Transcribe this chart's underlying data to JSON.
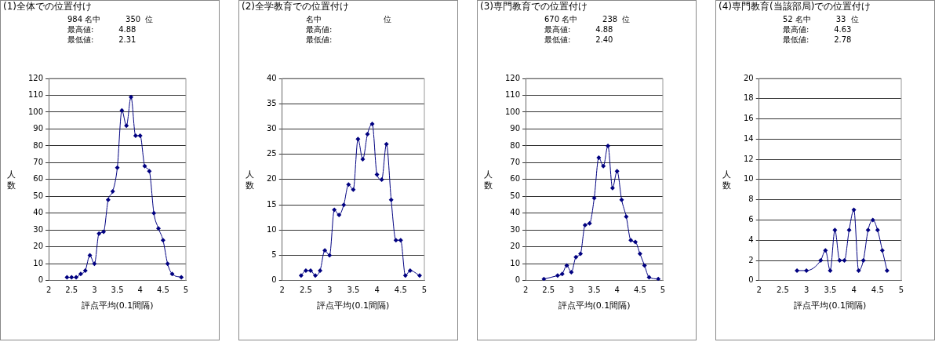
{
  "chart_data": [
    {
      "type": "line",
      "title": "(1)全体での位置付け",
      "annotations": [
        "984 名中          350  位",
        "最高値:          4.88",
        "最低値:          2.31"
      ],
      "xlabel": "評点平均(0.1間隔)",
      "ylabel": "人数",
      "color": "#000080",
      "marker": "diamond",
      "grid": "y",
      "x": [
        2.4,
        2.5,
        2.6,
        2.7,
        2.8,
        2.9,
        3.0,
        3.1,
        3.2,
        3.3,
        3.4,
        3.5,
        3.6,
        3.7,
        3.8,
        3.9,
        4.0,
        4.1,
        4.2,
        4.3,
        4.4,
        4.5,
        4.6,
        4.7,
        4.9
      ],
      "values": [
        2,
        2,
        2,
        4,
        6,
        15,
        10,
        28,
        29,
        48,
        53,
        67,
        101,
        92,
        109,
        86,
        86,
        68,
        65,
        40,
        31,
        24,
        10,
        4,
        2
      ],
      "xlim": [
        2,
        5
      ],
      "xticks": [
        2,
        2.5,
        3,
        3.5,
        4,
        4.5,
        5
      ],
      "ylim": [
        0,
        120
      ],
      "yticks": [
        0,
        10,
        20,
        30,
        40,
        50,
        60,
        70,
        80,
        90,
        100,
        110,
        120
      ]
    },
    {
      "type": "line",
      "title": "(2)全学教育での位置付け",
      "annotations": [
        "名中                         位",
        "最高値:",
        "最低値:"
      ],
      "xlabel": "評点平均(0.1間隔)",
      "ylabel": "人数",
      "color": "#000080",
      "marker": "diamond",
      "grid": "y",
      "x": [
        2.4,
        2.5,
        2.6,
        2.7,
        2.8,
        2.9,
        3.0,
        3.1,
        3.2,
        3.3,
        3.4,
        3.5,
        3.6,
        3.7,
        3.8,
        3.9,
        4.0,
        4.1,
        4.2,
        4.3,
        4.4,
        4.5,
        4.6,
        4.7,
        4.9
      ],
      "values": [
        1,
        2,
        2,
        1,
        2,
        6,
        5,
        14,
        13,
        15,
        19,
        18,
        28,
        24,
        29,
        31,
        21,
        20,
        27,
        16,
        8,
        8,
        1,
        2,
        1
      ],
      "xlim": [
        2,
        5
      ],
      "xticks": [
        2,
        2.5,
        3,
        3.5,
        4,
        4.5,
        5
      ],
      "ylim": [
        0,
        40
      ],
      "yticks": [
        0,
        5,
        10,
        15,
        20,
        25,
        30,
        35,
        40
      ]
    },
    {
      "type": "line",
      "title": "(3)専門教育での位置付け",
      "annotations": [
        "670 名中          238  位",
        "最高値:          4.88",
        "最低値:          2.40"
      ],
      "xlabel": "評点平均(0.1間隔)",
      "ylabel": "人数",
      "color": "#000080",
      "marker": "diamond",
      "grid": "y",
      "x": [
        2.4,
        2.7,
        2.8,
        2.9,
        3.0,
        3.1,
        3.2,
        3.3,
        3.4,
        3.5,
        3.6,
        3.7,
        3.8,
        3.9,
        4.0,
        4.1,
        4.2,
        4.3,
        4.4,
        4.5,
        4.6,
        4.7,
        4.9
      ],
      "values": [
        1,
        3,
        4,
        9,
        5,
        14,
        16,
        33,
        34,
        49,
        73,
        68,
        80,
        55,
        65,
        48,
        38,
        24,
        23,
        16,
        9,
        2,
        1
      ],
      "xlim": [
        2,
        5
      ],
      "xticks": [
        2,
        2.5,
        3,
        3.5,
        4,
        4.5,
        5
      ],
      "ylim": [
        0,
        120
      ],
      "yticks": [
        0,
        10,
        20,
        30,
        40,
        50,
        60,
        70,
        80,
        90,
        100,
        110,
        120
      ]
    },
    {
      "type": "line",
      "title": "(4)専門教育(当該部局)での位置付け",
      "annotations": [
        "52 名中          33  位",
        "最高値:          4.63",
        "最低値:          2.78"
      ],
      "xlabel": "評点平均(0.1間隔)",
      "ylabel": "人数",
      "color": "#000080",
      "marker": "diamond",
      "grid": "y",
      "x": [
        2.8,
        3.0,
        3.3,
        3.4,
        3.5,
        3.6,
        3.7,
        3.8,
        3.9,
        4.0,
        4.1,
        4.2,
        4.3,
        4.4,
        4.5,
        4.6,
        4.7
      ],
      "values": [
        1,
        1,
        2,
        3,
        1,
        5,
        2,
        2,
        5,
        7,
        1,
        2,
        5,
        6,
        5,
        3,
        1
      ],
      "xlim": [
        2,
        5
      ],
      "xticks": [
        2,
        2.5,
        3,
        3.5,
        4,
        4.5,
        5
      ],
      "ylim": [
        0,
        20
      ],
      "yticks": [
        0,
        2,
        4,
        6,
        8,
        10,
        12,
        14,
        16,
        18,
        20
      ]
    }
  ]
}
